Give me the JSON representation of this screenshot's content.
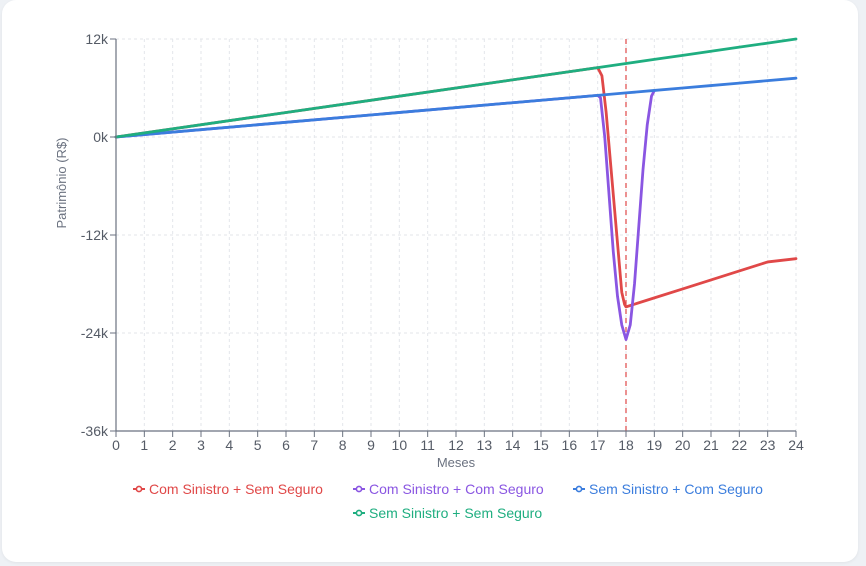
{
  "chart_data": {
    "type": "line",
    "title": "",
    "xlabel": "Meses",
    "ylabel": "Patrimônio (R$)",
    "xlim": [
      0,
      24
    ],
    "ylim": [
      -36000,
      12000
    ],
    "x_ticks": [
      0,
      1,
      2,
      3,
      4,
      5,
      6,
      7,
      8,
      9,
      10,
      11,
      12,
      13,
      14,
      15,
      16,
      17,
      18,
      19,
      20,
      21,
      22,
      23,
      24
    ],
    "x_tick_labels": [
      "0",
      "1",
      "2",
      "3",
      "4",
      "5",
      "6",
      "7",
      "8",
      "9",
      "10",
      "11",
      "12",
      "13",
      "14",
      "15",
      "16",
      "17",
      "18",
      "19",
      "20",
      "21",
      "22",
      "23",
      "24"
    ],
    "y_ticks": [
      12000,
      0,
      -12000,
      -24000,
      -36000
    ],
    "y_tick_labels": [
      "12k",
      "0k",
      "-12k",
      "-24k",
      "-36k"
    ],
    "grid": true,
    "legend_position": "bottom",
    "event_marker_x": 18,
    "series": [
      {
        "name": "Com Sinistro + Sem Seguro",
        "color": "#e04848",
        "points": [
          [
            0,
            0
          ],
          [
            17,
            8500
          ],
          [
            17.15,
            7500
          ],
          [
            17.3,
            3000
          ],
          [
            17.5,
            -5000
          ],
          [
            17.7,
            -13000
          ],
          [
            17.85,
            -19000
          ],
          [
            17.95,
            -20500
          ],
          [
            18,
            -20800
          ],
          [
            19,
            -19700
          ],
          [
            20,
            -18600
          ],
          [
            21,
            -17500
          ],
          [
            22,
            -16400
          ],
          [
            23,
            -15300
          ],
          [
            24,
            -14900
          ]
        ]
      },
      {
        "name": "Com Sinistro + Com Seguro",
        "color": "#8a56e2",
        "points": [
          [
            0,
            0
          ],
          [
            17,
            5100
          ],
          [
            17.1,
            4800
          ],
          [
            17.25,
            0
          ],
          [
            17.4,
            -7000
          ],
          [
            17.55,
            -14000
          ],
          [
            17.7,
            -19500
          ],
          [
            17.85,
            -23000
          ],
          [
            18,
            -24800
          ],
          [
            18.15,
            -23000
          ],
          [
            18.3,
            -18000
          ],
          [
            18.45,
            -11000
          ],
          [
            18.6,
            -4000
          ],
          [
            18.75,
            1500
          ],
          [
            18.9,
            5000
          ],
          [
            19,
            5700
          ]
        ]
      },
      {
        "name": "Sem Sinistro + Com Seguro",
        "color": "#3b7ddd",
        "points": [
          [
            0,
            0
          ],
          [
            17,
            5100
          ],
          [
            18,
            5400
          ],
          [
            19,
            5700
          ],
          [
            20,
            6000
          ],
          [
            21,
            6300
          ],
          [
            22,
            6600
          ],
          [
            23,
            6900
          ],
          [
            24,
            7200
          ]
        ]
      },
      {
        "name": "Sem Sinistro + Sem Seguro",
        "color": "#1fae80",
        "points": [
          [
            0,
            0
          ],
          [
            17,
            8500
          ],
          [
            18,
            9000
          ],
          [
            19,
            9500
          ],
          [
            20,
            10000
          ],
          [
            21,
            10500
          ],
          [
            22,
            11000
          ],
          [
            23,
            11500
          ],
          [
            24,
            12000
          ]
        ]
      }
    ]
  }
}
